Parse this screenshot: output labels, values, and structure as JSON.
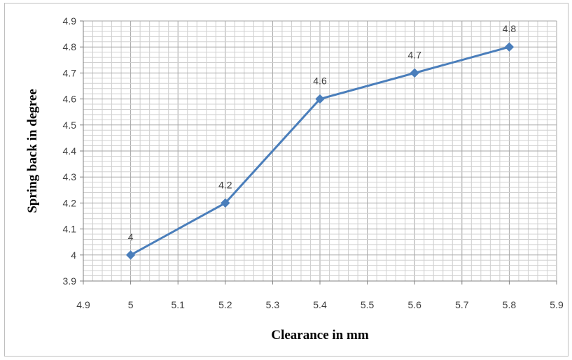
{
  "chart_data": {
    "type": "line",
    "title": "",
    "xlabel": "Clearance in mm",
    "ylabel": "Spring back in degree",
    "xlim": [
      4.9,
      5.9
    ],
    "ylim": [
      3.9,
      4.9
    ],
    "x_ticks": [
      "4.9",
      "5",
      "5.1",
      "5.2",
      "5.3",
      "5.4",
      "5.5",
      "5.6",
      "5.7",
      "5.8",
      "5.9"
    ],
    "y_ticks": [
      "3.9",
      "4",
      "4.1",
      "4.2",
      "4.3",
      "4.4",
      "4.5",
      "4.6",
      "4.7",
      "4.8",
      "4.9"
    ],
    "grid": true,
    "legend": "none",
    "series": [
      {
        "x": [
          5.0,
          5.2,
          5.4,
          5.6,
          5.8
        ],
        "y": [
          4.0,
          4.2,
          4.6,
          4.7,
          4.8
        ],
        "labels": [
          "4",
          "4.2",
          "4.6",
          "4.7",
          "4.8"
        ],
        "color": "#4a7ebb",
        "marker": "diamond"
      }
    ]
  }
}
